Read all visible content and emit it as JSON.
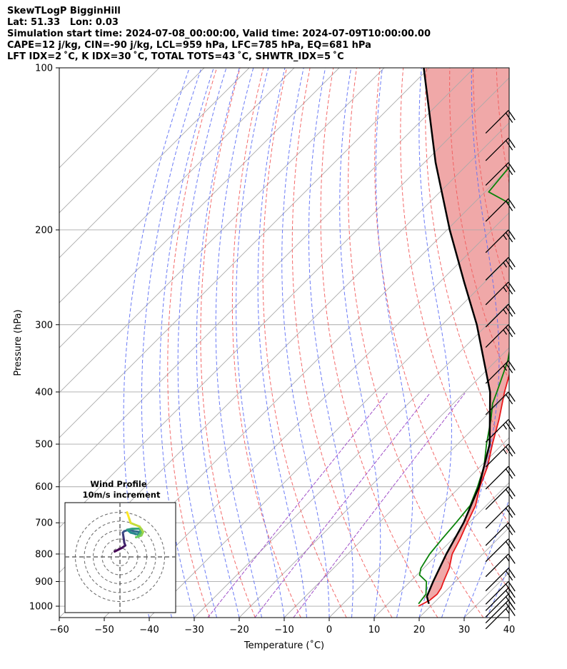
{
  "header": {
    "line1": "SkewTLogP BigginHill",
    "line2": "Lat: 51.33   Lon: 0.03",
    "line3": "Simulation start time: 2024-07-08_00:00:00, Valid time: 2024-07-09T10:00:00.00",
    "line4": "CAPE=12 j/kg, CIN=-90 j/kg, LCL=959 hPa, LFC=785 hPa, EQ=681 hPa",
    "line5": "LFT IDX=2 ˚C, K IDX=30 ˚C, TOTAL TOTS=43 ˚C, SHWTR_IDX=5 ˚C"
  },
  "chart_data": {
    "type": "line",
    "title": "SkewTLogP BigginHill",
    "xlabel": "Temperature (˚C)",
    "ylabel": "Pressure (hPa)",
    "xlim": [
      -60,
      40
    ],
    "ylim": [
      1050,
      100
    ],
    "y_scale": "log",
    "skew": "45deg",
    "x_ticks": [
      "−60",
      "−50",
      "−40",
      "−30",
      "−20",
      "−10",
      "0",
      "10",
      "20",
      "30",
      "40"
    ],
    "y_ticks": [
      "100",
      "200",
      "300",
      "400",
      "500",
      "600",
      "700",
      "800",
      "900",
      "1000"
    ],
    "grid": true,
    "series": [
      {
        "role": "temperature",
        "color": "#e8181a",
        "points": [
          [
            1000,
            17.3
          ],
          [
            975,
            18.5
          ],
          [
            950,
            18.8
          ],
          [
            925,
            18.3
          ],
          [
            900,
            17.4
          ],
          [
            850,
            15.7
          ],
          [
            800,
            13.2
          ],
          [
            750,
            11.6
          ],
          [
            700,
            9.6
          ],
          [
            650,
            7.6
          ],
          [
            600,
            4.4
          ],
          [
            550,
            1.6
          ],
          [
            500,
            -2.3
          ],
          [
            450,
            -6.3
          ],
          [
            400,
            -11.2
          ],
          [
            350,
            -16.2
          ],
          [
            300,
            -22.3
          ],
          [
            250,
            -31.4
          ],
          [
            225,
            -37.3
          ],
          [
            210,
            -37.7
          ],
          [
            200,
            -36.8
          ],
          [
            185,
            -35.6
          ],
          [
            175,
            -34.2
          ],
          [
            160,
            -33.8
          ],
          [
            140,
            -37.6
          ],
          [
            120,
            -43.9
          ],
          [
            110,
            -47.2
          ],
          [
            100,
            -50.6
          ]
        ]
      },
      {
        "role": "dewpoint",
        "color": "#0a830a",
        "points": [
          [
            990,
            16.8
          ],
          [
            950,
            16.3
          ],
          [
            900,
            13.6
          ],
          [
            875,
            10.6
          ],
          [
            850,
            9.4
          ],
          [
            800,
            8.2
          ],
          [
            750,
            7.6
          ],
          [
            700,
            7.1
          ],
          [
            650,
            6.4
          ],
          [
            600,
            3.9
          ],
          [
            550,
            0.8
          ],
          [
            500,
            -3.6
          ],
          [
            450,
            -8.1
          ],
          [
            420,
            -11.3
          ],
          [
            400,
            -12.9
          ],
          [
            350,
            -17.4
          ],
          [
            300,
            -24.0
          ],
          [
            260,
            -30.9
          ],
          [
            240,
            -35.1
          ],
          [
            220,
            -39.9
          ],
          [
            210,
            -42.4
          ],
          [
            200,
            -43.2
          ],
          [
            190,
            -45.5
          ],
          [
            180,
            -50.8
          ],
          [
            170,
            -59.2
          ],
          [
            150,
            -60.3
          ],
          [
            125,
            -61.9
          ],
          [
            100,
            -65.6
          ]
        ]
      },
      {
        "role": "parcel",
        "color": "#000000",
        "points": [
          [
            990,
            19.1
          ],
          [
            959,
            17.0
          ],
          [
            900,
            15.1
          ],
          [
            800,
            11.9
          ],
          [
            700,
            8.8
          ],
          [
            600,
            4.2
          ],
          [
            500,
            -2.9
          ],
          [
            400,
            -14.4
          ],
          [
            300,
            -32.3
          ],
          [
            250,
            -44.6
          ],
          [
            200,
            -59.4
          ],
          [
            150,
            -77.5
          ],
          [
            100,
            -101.2
          ]
        ]
      }
    ],
    "cape_shading_color": "#a4c7e0",
    "cin_shading_color": "#f0a8a8",
    "wind_barbs_kt": [
      {
        "p": 1000,
        "speed": 15,
        "dir": 225
      },
      {
        "p": 975,
        "speed": 15,
        "dir": 225
      },
      {
        "p": 950,
        "speed": 20,
        "dir": 225
      },
      {
        "p": 925,
        "speed": 20,
        "dir": 225
      },
      {
        "p": 900,
        "speed": 20,
        "dir": 225
      },
      {
        "p": 850,
        "speed": 20,
        "dir": 225
      },
      {
        "p": 800,
        "speed": 15,
        "dir": 225
      },
      {
        "p": 750,
        "speed": 20,
        "dir": 225
      },
      {
        "p": 700,
        "speed": 20,
        "dir": 225
      },
      {
        "p": 650,
        "speed": 20,
        "dir": 225
      },
      {
        "p": 600,
        "speed": 20,
        "dir": 225
      },
      {
        "p": 550,
        "speed": 20,
        "dir": 225
      },
      {
        "p": 500,
        "speed": 25,
        "dir": 225
      },
      {
        "p": 450,
        "speed": 25,
        "dir": 225
      },
      {
        "p": 400,
        "speed": 20,
        "dir": 225
      },
      {
        "p": 350,
        "speed": 25,
        "dir": 225
      },
      {
        "p": 300,
        "speed": 25,
        "dir": 225
      },
      {
        "p": 275,
        "speed": 25,
        "dir": 225
      },
      {
        "p": 250,
        "speed": 25,
        "dir": 225
      },
      {
        "p": 225,
        "speed": 25,
        "dir": 225
      },
      {
        "p": 200,
        "speed": 25,
        "dir": 225
      },
      {
        "p": 175,
        "speed": 20,
        "dir": 225
      },
      {
        "p": 150,
        "speed": 20,
        "dir": 225
      },
      {
        "p": 135,
        "speed": 20,
        "dir": 225
      },
      {
        "p": 120,
        "speed": 20,
        "dir": 225
      }
    ],
    "inset": {
      "title": "Wind Profile",
      "subtitle": "10m/s increment",
      "hodograph_uv": [
        [
          -1.5,
          1.5
        ],
        [
          0.5,
          2.5
        ],
        [
          1.5,
          3.2
        ],
        [
          1.2,
          4.0
        ],
        [
          1.0,
          5.5
        ],
        [
          0.8,
          6.8
        ],
        [
          1.2,
          7.2
        ],
        [
          2.5,
          7.6
        ],
        [
          4.0,
          7.2
        ],
        [
          5.5,
          7.0
        ],
        [
          5.0,
          6.3
        ],
        [
          3.0,
          6.8
        ],
        [
          2.0,
          7.6
        ],
        [
          3.5,
          7.9
        ],
        [
          5.5,
          7.9
        ],
        [
          6.0,
          7.0
        ],
        [
          5.0,
          5.7
        ],
        [
          4.5,
          5.5
        ],
        [
          6.0,
          6.0
        ],
        [
          6.5,
          7.0
        ],
        [
          5.5,
          8.5
        ],
        [
          3.0,
          9.5
        ],
        [
          2.5,
          11.0
        ],
        [
          2.0,
          12.5
        ]
      ]
    }
  }
}
